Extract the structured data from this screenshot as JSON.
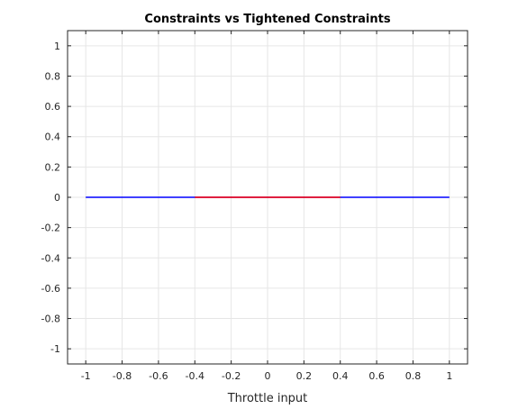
{
  "chart_data": {
    "type": "line",
    "title": "Constraints vs Tightened Constraints",
    "xlabel": "Throttle input",
    "ylabel": "",
    "xlim": [
      -1.1,
      1.1
    ],
    "ylim": [
      -1.1,
      1.1
    ],
    "xticks": [
      -1,
      -0.8,
      -0.6,
      -0.4,
      -0.2,
      0,
      0.2,
      0.4,
      0.6,
      0.8,
      1
    ],
    "xtick_labels": [
      "-1",
      "-0.8",
      "-0.6",
      "-0.4",
      "-0.2",
      "0",
      "0.2",
      "0.4",
      "0.6",
      "0.8",
      "1"
    ],
    "yticks": [
      -1,
      -0.8,
      -0.6,
      -0.4,
      -0.2,
      0,
      0.2,
      0.4,
      0.6,
      0.8,
      1
    ],
    "ytick_labels": [
      "-1",
      "-0.8",
      "-0.6",
      "-0.4",
      "-0.2",
      "0",
      "0.2",
      "0.4",
      "0.6",
      "0.8",
      "1"
    ],
    "grid": true,
    "series": [
      {
        "x": [
          -1,
          1
        ],
        "y": [
          0,
          0
        ],
        "color": "#0000ff"
      },
      {
        "x": [
          -0.4,
          0.4
        ],
        "y": [
          0,
          0
        ],
        "color": "#ff0000"
      }
    ]
  }
}
